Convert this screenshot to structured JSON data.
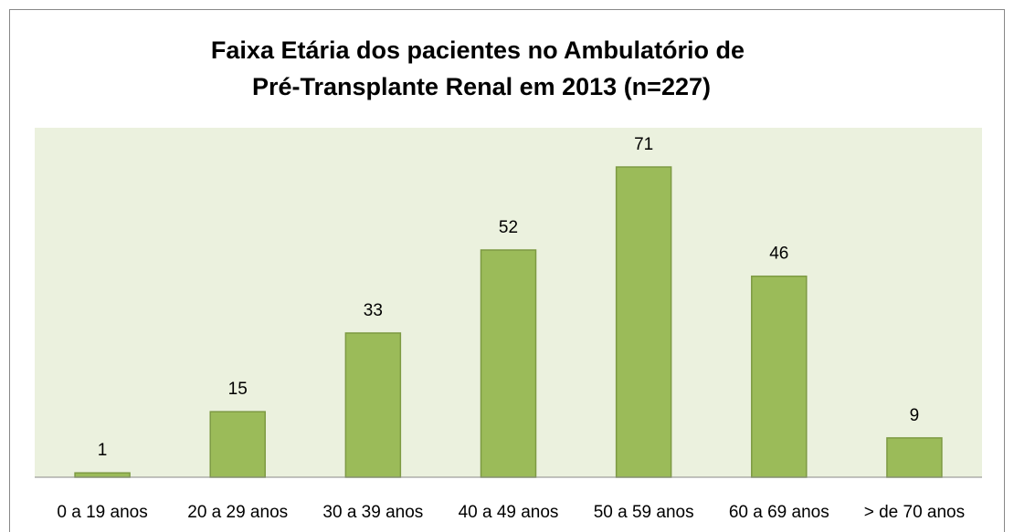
{
  "chart_data": {
    "type": "bar",
    "title": [
      "Faixa Etária dos pacientes no Ambulatório de",
      "Pré-Transplante Renal em 2013 (n=227)"
    ],
    "categories": [
      "0 a 19 anos",
      "20 a 29 anos",
      "30 a 39 anos",
      "40 a 49 anos",
      "50 a 59 anos",
      "60 a 69 anos",
      "> de 70 anos"
    ],
    "values": [
      1,
      15,
      33,
      52,
      71,
      46,
      9
    ],
    "color": "#9bbb59"
  }
}
